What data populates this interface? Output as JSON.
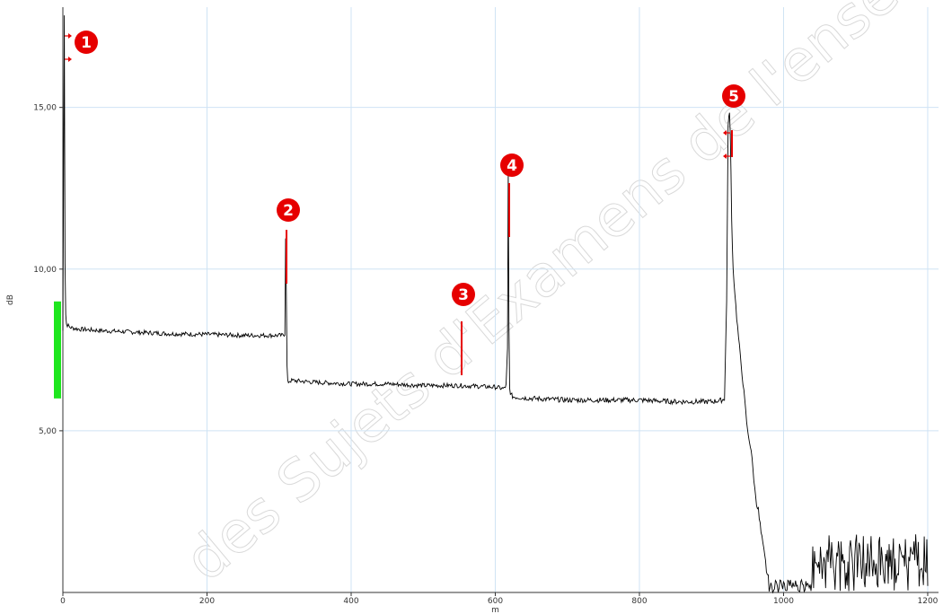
{
  "chart_data": {
    "type": "line",
    "xlabel": "m",
    "ylabel": "dB",
    "xlim": [
      0,
      1215
    ],
    "ylim": [
      0,
      18.1
    ],
    "x_ticks": [
      "0",
      "200",
      "400",
      "600",
      "800",
      "1000",
      "1200"
    ],
    "y_ticks": [
      "5,00",
      "10,00",
      "15,00"
    ],
    "grid": true,
    "series": [
      {
        "color": "#000000",
        "x": [
          0,
          2,
          3,
          4,
          5,
          10,
          20,
          50,
          100,
          150,
          200,
          250,
          295,
          305,
          308,
          309,
          310,
          311,
          312,
          315,
          320,
          350,
          400,
          450,
          500,
          550,
          600,
          612,
          615,
          617,
          618,
          619,
          620,
          622,
          625,
          650,
          700,
          750,
          800,
          850,
          900,
          915,
          918,
          921,
          923,
          925,
          926,
          927,
          928,
          930,
          935,
          940,
          945,
          950,
          955,
          960,
          965,
          970,
          975,
          980,
          990,
          1000,
          1050,
          1100,
          1150,
          1200
        ],
        "y": [
          8.1,
          17.9,
          10.2,
          8.6,
          8.3,
          8.2,
          8.15,
          8.1,
          8.05,
          8.0,
          7.98,
          7.95,
          7.95,
          7.95,
          8.0,
          11.0,
          9.3,
          7.0,
          6.5,
          6.55,
          6.55,
          6.5,
          6.45,
          6.45,
          6.4,
          6.4,
          6.35,
          6.3,
          6.4,
          7.5,
          13.0,
          8.2,
          6.3,
          6.1,
          6.05,
          6.0,
          5.95,
          5.95,
          5.95,
          5.9,
          5.9,
          5.95,
          6.0,
          9.0,
          14.4,
          14.9,
          14.2,
          13.0,
          11.5,
          10.0,
          8.5,
          7.3,
          6.2,
          5.0,
          4.4,
          3.2,
          2.5,
          1.6,
          0.9,
          0.2,
          0.0,
          0.0,
          0.0,
          0.3,
          0.6,
          0.2
        ],
        "noise": 0.07
      }
    ],
    "event_markers": [
      {
        "label": "1",
        "x": 0,
        "color": "#e60000"
      },
      {
        "label": "2",
        "x": 309,
        "color": "#e60000"
      },
      {
        "label": "3",
        "x": 553,
        "color": "#e60000"
      },
      {
        "label": "4",
        "x": 618,
        "color": "#e60000"
      },
      {
        "label": "5",
        "x": 925,
        "color": "#e60000"
      }
    ],
    "green_bar": {
      "y_from": 6.0,
      "y_to": 9.0,
      "color": "#1ee61e"
    },
    "colors": {
      "grid": "#cfe3f4",
      "axis": "#333333",
      "marker": "#e60000"
    }
  },
  "watermark": "des Sujets d'Examens de l'enseignement"
}
